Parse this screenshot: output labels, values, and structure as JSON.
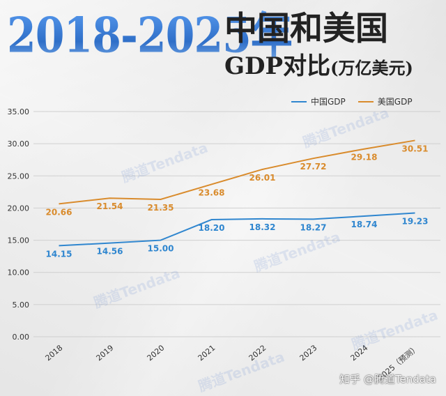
{
  "header": {
    "year_range": "2018-2025年",
    "title": "中国和美国",
    "subtitle": "GDP对比",
    "unit": "(万亿美元)"
  },
  "watermark": "腾道Tendata",
  "credit": "知乎 @腾道Tendata",
  "colors": {
    "china": "#2f86cf",
    "usa": "#d98b2c",
    "grid": "#cfcfcf"
  },
  "chart_data": {
    "type": "line",
    "title": "",
    "xlabel": "",
    "ylabel": "",
    "categories": [
      "2018",
      "2019",
      "2020",
      "2021",
      "2022",
      "2023",
      "2024",
      "2025（预测）"
    ],
    "series": [
      {
        "name": "中国GDP",
        "color": "#2f86cf",
        "values": [
          14.15,
          14.56,
          15.0,
          18.2,
          18.32,
          18.27,
          18.74,
          19.23
        ]
      },
      {
        "name": "美国GDP",
        "color": "#d98b2c",
        "values": [
          20.66,
          21.54,
          21.35,
          23.68,
          26.01,
          27.72,
          29.18,
          30.51
        ]
      }
    ],
    "ylim": [
      0,
      35
    ],
    "ytick_step": 5,
    "grid": true,
    "legend_position": "top-right"
  }
}
